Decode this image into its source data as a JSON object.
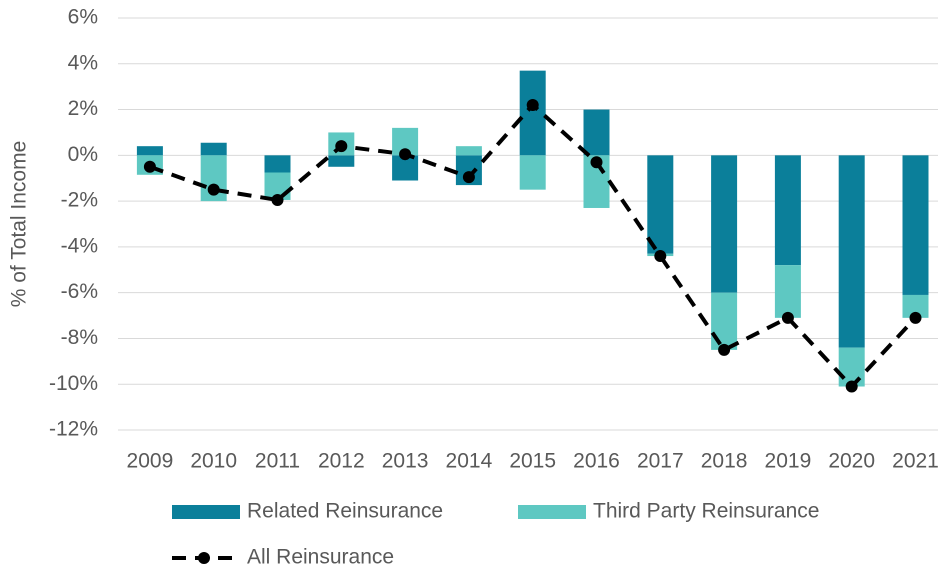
{
  "chart_data": {
    "type": "bar",
    "y_axis_label": "% of Total Income",
    "categories": [
      "2009",
      "2010",
      "2011",
      "2012",
      "2013",
      "2014",
      "2015",
      "2016",
      "2017",
      "2018",
      "2019",
      "2020",
      "2021"
    ],
    "series": [
      {
        "name": "Related Reinsurance",
        "color": "#0b7f9a",
        "values": [
          0.4,
          0.55,
          -0.75,
          -0.5,
          -1.1,
          -1.3,
          3.7,
          2.0,
          -4.3,
          -6.0,
          -4.8,
          -8.4,
          -6.1
        ]
      },
      {
        "name": "Third Party Reinsurance",
        "color": "#5ec8c2",
        "values": [
          -0.85,
          -2.0,
          -1.2,
          1.0,
          1.2,
          0.4,
          -1.5,
          -2.3,
          -0.1,
          -2.5,
          -2.3,
          -1.7,
          -1.0
        ]
      },
      {
        "name": "All Reinsurance",
        "type": "line",
        "color": "#000000",
        "values": [
          -0.5,
          -1.5,
          -1.95,
          0.4,
          0.05,
          -0.95,
          2.2,
          -0.3,
          -4.4,
          -8.5,
          -7.1,
          -10.1,
          -7.1
        ]
      }
    ],
    "ylim": [
      -12,
      6
    ],
    "yticks": [
      {
        "value": -12,
        "label": "-12%"
      },
      {
        "value": -10,
        "label": "-10%"
      },
      {
        "value": -8,
        "label": "-8%"
      },
      {
        "value": -6,
        "label": "-6%"
      },
      {
        "value": -4,
        "label": "-4%"
      },
      {
        "value": -2,
        "label": "-2%"
      },
      {
        "value": 0,
        "label": "0%"
      },
      {
        "value": 2,
        "label": "2%"
      },
      {
        "value": 4,
        "label": "4%"
      },
      {
        "value": 6,
        "label": "6%"
      }
    ],
    "grid": true,
    "legend": "bottom"
  }
}
